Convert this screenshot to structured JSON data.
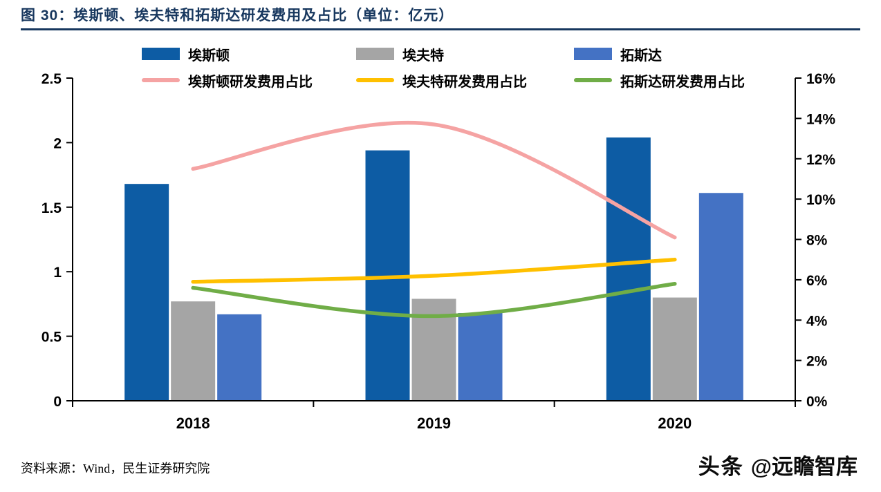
{
  "page": {
    "title": "图 30：埃斯顿、埃夫特和拓斯达研发费用及占比（单位：亿元）",
    "source_note": "资料来源：Wind，民生证券研究院",
    "watermark_brand": "头条",
    "watermark_handle": "@远瞻智库",
    "accent_color": "#17375E"
  },
  "chart_data": {
    "type": "bar",
    "secondary_type": "line",
    "title": "埃斯顿、埃夫特和拓斯达研发费用及占比",
    "unit": "亿元",
    "grid": false,
    "legend_position": "top",
    "categories": [
      "2018",
      "2019",
      "2020"
    ],
    "bar_series": [
      {
        "name": "埃斯顿",
        "color": "#0D5CA4",
        "axis": "left",
        "values": [
          1.68,
          1.94,
          2.04
        ]
      },
      {
        "name": "埃夫特",
        "color": "#A5A5A5",
        "axis": "left",
        "values": [
          0.77,
          0.79,
          0.8
        ]
      },
      {
        "name": "拓斯达",
        "color": "#4472C4",
        "axis": "left",
        "values": [
          0.67,
          0.68,
          1.61
        ]
      }
    ],
    "line_series": [
      {
        "name": "埃斯顿研发费用占比",
        "color": "#F5A3A3",
        "axis": "right",
        "values": [
          11.5,
          13.7,
          8.1
        ]
      },
      {
        "name": "埃夫特研发费用占比",
        "color": "#FFC000",
        "axis": "right",
        "values": [
          5.9,
          6.2,
          7.0
        ]
      },
      {
        "name": "拓斯达研发费用占比",
        "color": "#70AD47",
        "axis": "right",
        "values": [
          5.6,
          4.2,
          5.8
        ]
      }
    ],
    "left_axis": {
      "min": 0,
      "max": 2.5,
      "tick_labels": [
        "0",
        "0.5",
        "1",
        "1.5",
        "2",
        "2.5"
      ]
    },
    "right_axis": {
      "min": 0,
      "max": 16,
      "tick_labels": [
        "0%",
        "2%",
        "4%",
        "6%",
        "8%",
        "10%",
        "12%",
        "14%",
        "16%"
      ]
    }
  }
}
